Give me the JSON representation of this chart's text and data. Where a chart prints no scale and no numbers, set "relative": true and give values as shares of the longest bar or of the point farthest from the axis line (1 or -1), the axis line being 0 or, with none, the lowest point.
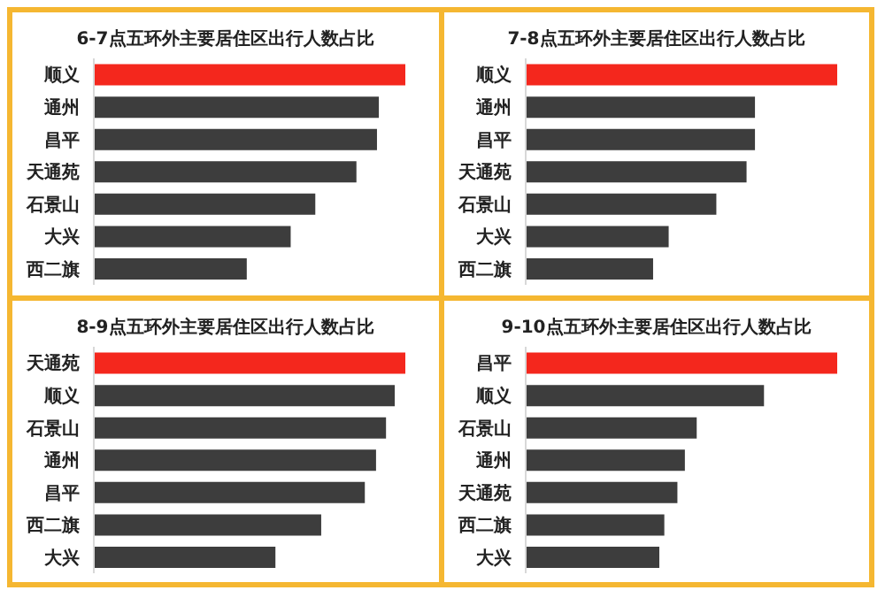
{
  "chart_data": [
    {
      "type": "bar",
      "orientation": "horizontal",
      "relative": true,
      "title": "6-7点五环外主要居住区出行人数占比",
      "categories": [
        "顺义",
        "通州",
        "昌平",
        "天通苑",
        "石景山",
        "大兴",
        "西二旗"
      ],
      "values": [
        1,
        0.915,
        0.909,
        0.843,
        0.711,
        0.632,
        0.491
      ],
      "colors": [
        "#f4271d",
        "#3d3d3d",
        "#3d3d3d",
        "#3d3d3d",
        "#3d3d3d",
        "#3d3d3d",
        "#3d3d3d"
      ]
    },
    {
      "type": "bar",
      "orientation": "horizontal",
      "relative": true,
      "title": "7-8点五环外主要居住区出行人数占比",
      "categories": [
        "顺义",
        "通州",
        "昌平",
        "天通苑",
        "石景山",
        "大兴",
        "西二旗"
      ],
      "values": [
        1,
        0.736,
        0.736,
        0.709,
        0.612,
        0.459,
        0.409
      ],
      "colors": [
        "#f4271d",
        "#3d3d3d",
        "#3d3d3d",
        "#3d3d3d",
        "#3d3d3d",
        "#3d3d3d",
        "#3d3d3d"
      ]
    },
    {
      "type": "bar",
      "orientation": "horizontal",
      "relative": true,
      "title": "8-9点五环外主要居住区出行人数占比",
      "categories": [
        "天通苑",
        "顺义",
        "石景山",
        "通州",
        "昌平",
        "西二旗",
        "大兴"
      ],
      "values": [
        1,
        0.966,
        0.938,
        0.906,
        0.87,
        0.73,
        0.583
      ],
      "colors": [
        "#f4271d",
        "#3d3d3d",
        "#3d3d3d",
        "#3d3d3d",
        "#3d3d3d",
        "#3d3d3d",
        "#3d3d3d"
      ]
    },
    {
      "type": "bar",
      "orientation": "horizontal",
      "relative": true,
      "title": "9-10点五环外主要居住区出行人数占比",
      "categories": [
        "昌平",
        "顺义",
        "石景山",
        "通州",
        "天通苑",
        "西二旗",
        "大兴"
      ],
      "values": [
        1,
        0.765,
        0.549,
        0.511,
        0.487,
        0.445,
        0.429
      ],
      "colors": [
        "#f4271d",
        "#3d3d3d",
        "#3d3d3d",
        "#3d3d3d",
        "#3d3d3d",
        "#3d3d3d",
        "#3d3d3d"
      ]
    }
  ]
}
